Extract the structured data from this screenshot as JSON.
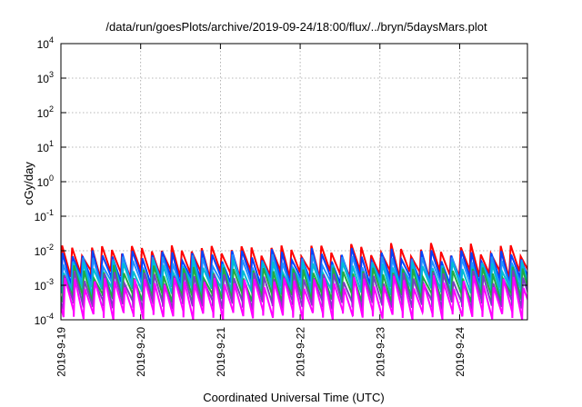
{
  "chart_data": {
    "type": "line",
    "title": "/data/run/goesPlots/archive/2019-09-24/18:00/flux/../bryn/5daysMars.plot",
    "xlabel": "Coordinated Universal Time (UTC)",
    "ylabel": "cGy/day",
    "yscale": "log",
    "ylim": [
      0.0001,
      10000
    ],
    "xlim": [
      0,
      5.85
    ],
    "x_origin": "2019-09-19",
    "x_tick_labels": [
      "2019-9-19",
      "2019-9-20",
      "2019-9-21",
      "2019-9-22",
      "2019-9-23",
      "2019-9-24"
    ],
    "x_tick_values": [
      0,
      1,
      2,
      3,
      4,
      5
    ],
    "y_tick_labels": [
      {
        "base": "10",
        "exp": "-4"
      },
      {
        "base": "10",
        "exp": "-3"
      },
      {
        "base": "10",
        "exp": "-2"
      },
      {
        "base": "10",
        "exp": "-1"
      },
      {
        "base": "10",
        "exp": "0"
      },
      {
        "base": "10",
        "exp": "1"
      },
      {
        "base": "10",
        "exp": "2"
      },
      {
        "base": "10",
        "exp": "3"
      },
      {
        "base": "10",
        "exp": "4"
      }
    ],
    "y_tick_values": [
      0.0001,
      0.001,
      0.01,
      0.1,
      1,
      10,
      100,
      1000,
      10000
    ],
    "grid": true,
    "legend": "none",
    "sawtooth_period_days": 0.125,
    "series": [
      {
        "color": "#ff0000",
        "peak": 0.0105,
        "trough": 0.0022
      },
      {
        "color": "#0044ff",
        "peak": 0.0075,
        "trough": 0.0014
      },
      {
        "color": "#1e90ff",
        "peak": 0.005,
        "trough": 0.001
      },
      {
        "color": "#00bcd4",
        "peak": 0.0035,
        "trough": 0.0007
      },
      {
        "color": "#22aa44",
        "peak": 0.0024,
        "trough": 0.00045
      },
      {
        "color": "#7b3fbf",
        "peak": 0.0017,
        "trough": 0.00028
      },
      {
        "color": "#ff00ff",
        "peak": 0.0012,
        "trough": 0.00014
      }
    ]
  }
}
